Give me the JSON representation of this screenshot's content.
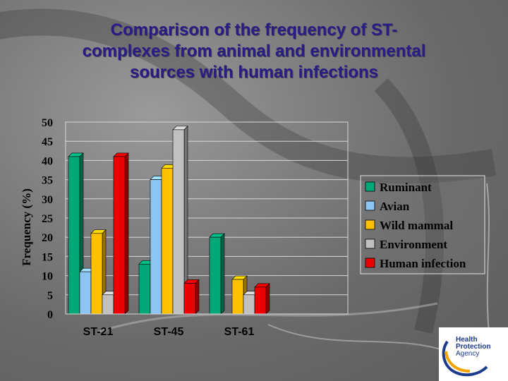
{
  "title_lines": [
    "Comparison of the frequency of ST-",
    "complexes from animal and environmental",
    "sources with human infections"
  ],
  "logo": {
    "line1": "Health",
    "line2": "Protection",
    "line3": "Agency"
  },
  "chart_data": {
    "type": "bar",
    "title": "Comparison of the frequency of ST-complexes from animal and environmental sources with human infections",
    "ylabel": "Frequency (%)",
    "xlabel": "",
    "ylim": [
      0,
      50
    ],
    "yticks": [
      "0",
      "5",
      "10",
      "15",
      "20",
      "25",
      "30",
      "35",
      "40",
      "45",
      "50"
    ],
    "categories": [
      "ST-21",
      "ST-45",
      "ST-61"
    ],
    "legend_position": "right",
    "grid": true,
    "series": [
      {
        "name": "Ruminant",
        "color": "#00a878",
        "values": [
          41,
          13,
          20
        ]
      },
      {
        "name": "Avian",
        "color": "#8ec4f2",
        "values": [
          11,
          35,
          0
        ]
      },
      {
        "name": "Wild mammal",
        "color": "#ffc000",
        "values": [
          21,
          38,
          9
        ]
      },
      {
        "name": "Environment",
        "color": "#c0c0c0",
        "values": [
          5,
          48,
          5
        ]
      },
      {
        "name": "Human infection",
        "color": "#ee0000",
        "values": [
          41,
          8,
          7
        ]
      }
    ]
  }
}
